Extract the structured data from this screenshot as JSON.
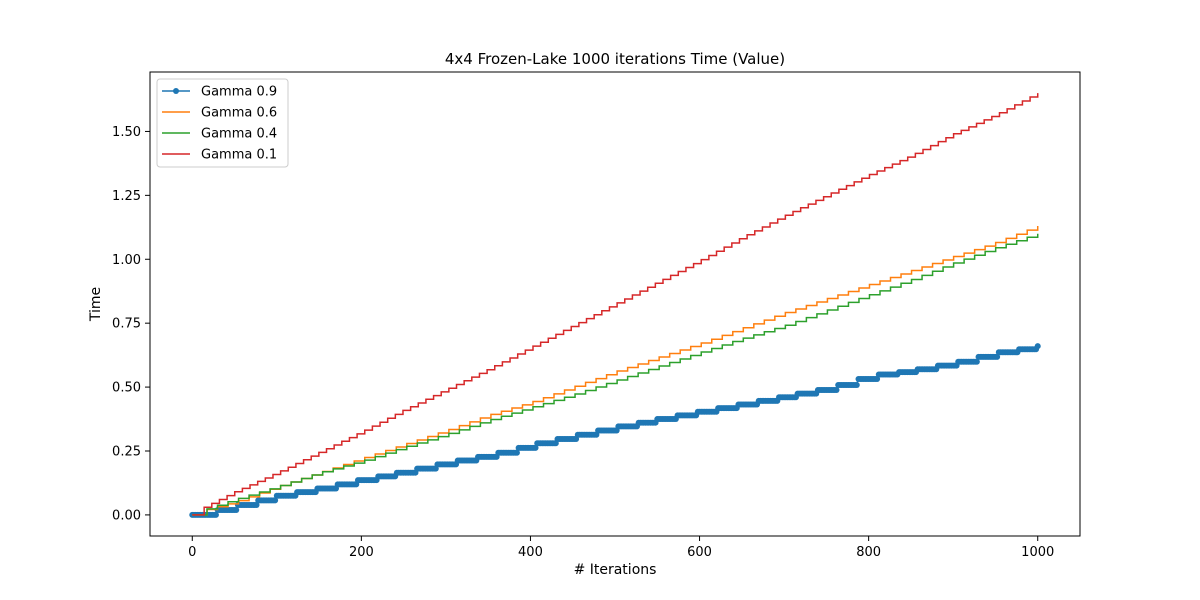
{
  "chart_data": {
    "type": "line",
    "title": "4x4 Frozen-Lake 1000 iterations  Time (Value)",
    "xlabel": "# Iterations",
    "ylabel": "Time",
    "xlim": [
      -50,
      1050
    ],
    "ylim": [
      -0.0825,
      1.7325
    ],
    "xticks": [
      0,
      200,
      400,
      600,
      800,
      1000
    ],
    "yticks": [
      0.0,
      0.25,
      0.5,
      0.75,
      1.0,
      1.25,
      1.5
    ],
    "xtick_labels": [
      "0",
      "200",
      "400",
      "600",
      "800",
      "1000"
    ],
    "ytick_labels": [
      "0.00",
      "0.25",
      "0.50",
      "0.75",
      "1.00",
      "1.25",
      "1.50"
    ],
    "grid": false,
    "legend_position": "upper-left",
    "series": [
      {
        "name": "Gamma 0.9",
        "color": "#1f77b4",
        "marker": "circle",
        "steps": 42,
        "x": [
          0,
          5,
          30,
          60,
          100,
          150,
          200,
          250,
          300,
          350,
          400,
          450,
          500,
          550,
          600,
          650,
          700,
          750,
          800,
          850,
          900,
          950,
          1000
        ],
        "y": [
          0.0,
          0.005,
          0.02,
          0.045,
          0.075,
          0.105,
          0.14,
          0.17,
          0.205,
          0.235,
          0.275,
          0.31,
          0.345,
          0.375,
          0.405,
          0.435,
          0.465,
          0.495,
          0.545,
          0.565,
          0.595,
          0.635,
          0.66
        ]
      },
      {
        "name": "Gamma 0.6",
        "color": "#ff7f0e",
        "marker": "none",
        "steps": 80,
        "x": [
          0,
          5,
          50,
          100,
          150,
          200,
          250,
          300,
          350,
          400,
          450,
          500,
          550,
          600,
          650,
          700,
          750,
          800,
          850,
          900,
          950,
          1000
        ],
        "y": [
          0.0,
          0.01,
          0.05,
          0.11,
          0.165,
          0.22,
          0.275,
          0.33,
          0.39,
          0.44,
          0.5,
          0.56,
          0.615,
          0.67,
          0.73,
          0.79,
          0.845,
          0.9,
          0.955,
          1.01,
          1.065,
          1.13
        ]
      },
      {
        "name": "Gamma 0.4",
        "color": "#2ca02c",
        "marker": "none",
        "steps": 80,
        "x": [
          0,
          5,
          50,
          100,
          150,
          200,
          250,
          300,
          350,
          400,
          450,
          500,
          550,
          600,
          650,
          700,
          750,
          800,
          850,
          900,
          950,
          1000
        ],
        "y": [
          0.0,
          0.01,
          0.06,
          0.11,
          0.165,
          0.21,
          0.265,
          0.315,
          0.37,
          0.42,
          0.47,
          0.525,
          0.58,
          0.635,
          0.69,
          0.74,
          0.8,
          0.86,
          0.92,
          0.985,
          1.045,
          1.1
        ]
      },
      {
        "name": "Gamma 0.1",
        "color": "#d62728",
        "marker": "none",
        "steps": 110,
        "x": [
          0,
          5,
          50,
          100,
          150,
          200,
          250,
          300,
          350,
          400,
          450,
          500,
          550,
          600,
          650,
          700,
          750,
          800,
          850,
          900,
          950,
          1000
        ],
        "y": [
          0.0,
          0.015,
          0.09,
          0.165,
          0.245,
          0.325,
          0.41,
          0.49,
          0.57,
          0.655,
          0.74,
          0.825,
          0.91,
          0.995,
          1.085,
          1.17,
          1.25,
          1.33,
          1.405,
          1.49,
          1.565,
          1.65
        ]
      }
    ]
  }
}
